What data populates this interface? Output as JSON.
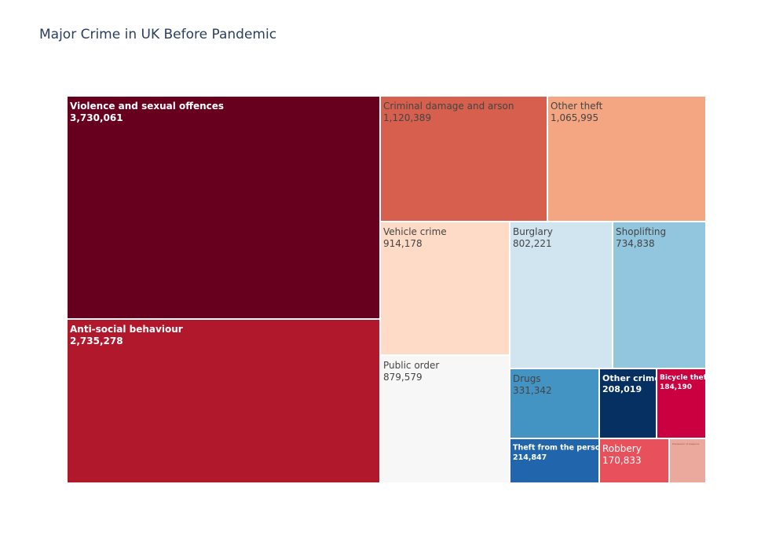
{
  "title": "Major Crime in UK Before Pandemic",
  "chart_data": {
    "type": "treemap",
    "title": "Major Crime in UK Before Pandemic",
    "items": [
      {
        "name": "Violence and sexual offences",
        "value_label": "3,730,061",
        "value": 3730061,
        "color": "#67001f",
        "text_color": "#ffffff",
        "bold": true
      },
      {
        "name": "Anti-social behaviour",
        "value_label": "2,735,278",
        "value": 2735278,
        "color": "#b2182b",
        "text_color": "#ffffff",
        "bold": true
      },
      {
        "name": "Criminal damage and arson",
        "value_label": "1,120,389",
        "value": 1120389,
        "color": "#d6604d",
        "text_color": "#444444",
        "bold": false
      },
      {
        "name": "Other theft",
        "value_label": "1,065,995",
        "value": 1065995,
        "color": "#f4a582",
        "text_color": "#444444",
        "bold": false
      },
      {
        "name": "Vehicle crime",
        "value_label": "914,178",
        "value": 914178,
        "color": "#fddbc7",
        "text_color": "#444444",
        "bold": false
      },
      {
        "name": "Public order",
        "value_label": "879,579",
        "value": 879579,
        "color": "#f7f7f7",
        "text_color": "#444444",
        "bold": false
      },
      {
        "name": "Burglary",
        "value_label": "802,221",
        "value": 802221,
        "color": "#d1e5f0",
        "text_color": "#444444",
        "bold": false
      },
      {
        "name": "Shoplifting",
        "value_label": "734,838",
        "value": 734838,
        "color": "#92c5de",
        "text_color": "#444444",
        "bold": false
      },
      {
        "name": "Drugs",
        "value_label": "331,342",
        "value": 331342,
        "color": "#4393c3",
        "text_color": "#444444",
        "bold": false
      },
      {
        "name": "Other crime",
        "value_label": "208,019",
        "value": 208019,
        "color": "#053061",
        "text_color": "#ffffff",
        "bold": true
      },
      {
        "name": "Bicycle theft",
        "value_label": "184,190",
        "value": 184190,
        "color": "#ca0040",
        "text_color": "#ffffff",
        "bold": true
      },
      {
        "name": "Theft from the person",
        "value_label": "214,847",
        "value": 214847,
        "color": "#2166ac",
        "text_color": "#ffffff",
        "bold": true
      },
      {
        "name": "Robbery",
        "value_label": "170,833",
        "value": 170833,
        "color": "#e8505b",
        "text_color": "#ffffff",
        "bold": false
      },
      {
        "name": "Possession of weapons",
        "value_label": "",
        "value": 100000,
        "color": "#eaa99c",
        "text_color": "#8a5a50",
        "bold": false
      }
    ]
  }
}
